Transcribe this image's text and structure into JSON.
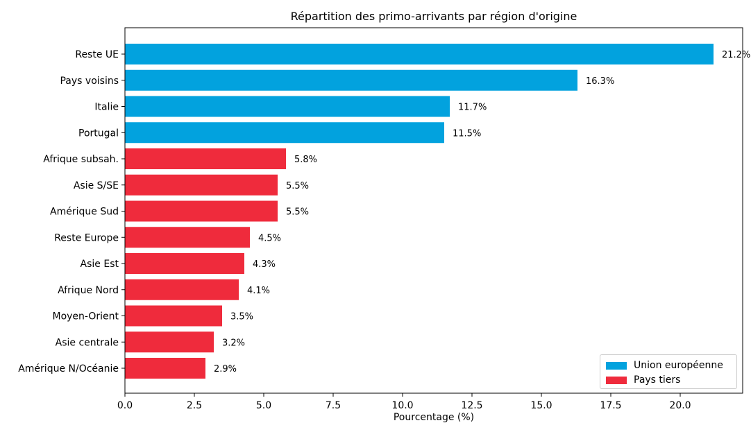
{
  "chart_data": {
    "type": "bar",
    "orientation": "horizontal",
    "title": "Répartition des primo-arrivants par région d'origine",
    "xlabel": "Pourcentage (%)",
    "ylabel": "",
    "xlim": [
      0,
      22.25
    ],
    "xticks": [
      "0.0",
      "2.5",
      "5.0",
      "7.5",
      "10.0",
      "12.5",
      "15.0",
      "17.5",
      "20.0"
    ],
    "grid": false,
    "legend_position": "bottom-right",
    "categories": [
      "Reste UE",
      "Pays voisins",
      "Italie",
      "Portugal",
      "Afrique subsah.",
      "Asie S/SE",
      "Amérique Sud",
      "Reste Europe",
      "Asie Est",
      "Afrique Nord",
      "Moyen-Orient",
      "Asie centrale",
      "Amérique N/Océanie"
    ],
    "values": [
      21.2,
      16.3,
      11.7,
      11.5,
      5.8,
      5.5,
      5.5,
      4.5,
      4.3,
      4.1,
      3.5,
      3.2,
      2.9
    ],
    "data_labels": [
      "21.2%",
      "16.3%",
      "11.7%",
      "11.5%",
      "5.8%",
      "5.5%",
      "5.5%",
      "4.5%",
      "4.3%",
      "4.1%",
      "3.5%",
      "3.2%",
      "2.9%"
    ],
    "groups": [
      "eu",
      "eu",
      "eu",
      "eu",
      "tiers",
      "tiers",
      "tiers",
      "tiers",
      "tiers",
      "tiers",
      "tiers",
      "tiers",
      "tiers"
    ],
    "series": [
      {
        "key": "eu",
        "name": "Union européenne",
        "color": "#02a2de"
      },
      {
        "key": "tiers",
        "name": "Pays tiers",
        "color": "#ef2b3c"
      }
    ]
  }
}
